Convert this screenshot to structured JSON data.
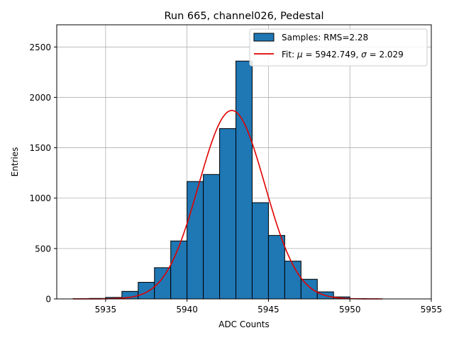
{
  "chart_data": {
    "type": "bar",
    "title": "Run 665, channel026, Pedestal",
    "xlabel": "ADC Counts",
    "ylabel": "Entries",
    "xlim": [
      5932.0,
      5955.0
    ],
    "ylim": [
      0,
      2720
    ],
    "xticks": [
      5935,
      5940,
      5945,
      5950,
      5955
    ],
    "yticks": [
      0,
      500,
      1000,
      1500,
      2000,
      2500
    ],
    "grid": true,
    "legend_position": "top-right",
    "histogram": {
      "name": "Samples: RMS=2.28",
      "color": "#1f77b4",
      "edge_color": "#000000",
      "bins": [
        {
          "left": 5933,
          "right": 5934,
          "value": 2
        },
        {
          "left": 5934,
          "right": 5935,
          "value": 5
        },
        {
          "left": 5935,
          "right": 5936,
          "value": 15
        },
        {
          "left": 5936,
          "right": 5937,
          "value": 75
        },
        {
          "left": 5937,
          "right": 5938,
          "value": 165
        },
        {
          "left": 5938,
          "right": 5939,
          "value": 310
        },
        {
          "left": 5939,
          "right": 5940,
          "value": 575
        },
        {
          "left": 5940,
          "right": 5941,
          "value": 1165
        },
        {
          "left": 5941,
          "right": 5942,
          "value": 1235
        },
        {
          "left": 5942,
          "right": 5943,
          "value": 1690
        },
        {
          "left": 5943,
          "right": 5944,
          "value": 2360
        },
        {
          "left": 5944,
          "right": 5945,
          "value": 955
        },
        {
          "left": 5945,
          "right": 5946,
          "value": 630
        },
        {
          "left": 5946,
          "right": 5947,
          "value": 375
        },
        {
          "left": 5947,
          "right": 5948,
          "value": 195
        },
        {
          "left": 5948,
          "right": 5949,
          "value": 70
        },
        {
          "left": 5949,
          "right": 5950,
          "value": 20
        },
        {
          "left": 5950,
          "right": 5951,
          "value": 3
        }
      ]
    },
    "fit": {
      "name": "Fit: μ = 5942.749, σ = 2.029",
      "color": "#e00000",
      "mu": 5942.749,
      "sigma": 2.029,
      "amplitude": 1870,
      "x_range": [
        5933.0,
        5952.0
      ]
    }
  },
  "legend": {
    "hist_prefix": "Samples: RMS=2.28",
    "fit_prefix": "Fit: ",
    "fit_mu_symbol": "μ",
    "fit_mu_value": " = 5942.749, ",
    "fit_sigma_symbol": "σ",
    "fit_sigma_value": " = 2.029"
  }
}
